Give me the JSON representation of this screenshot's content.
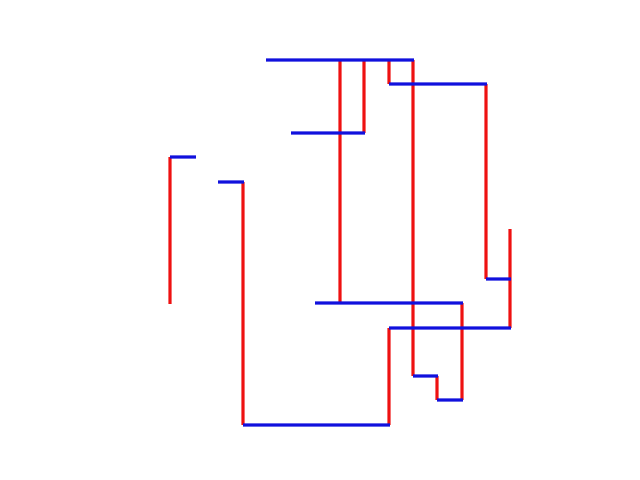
{
  "colors": {
    "vertical": "#ee1111",
    "horizontal": "#1111dd",
    "background": "#ffffff"
  }
}
